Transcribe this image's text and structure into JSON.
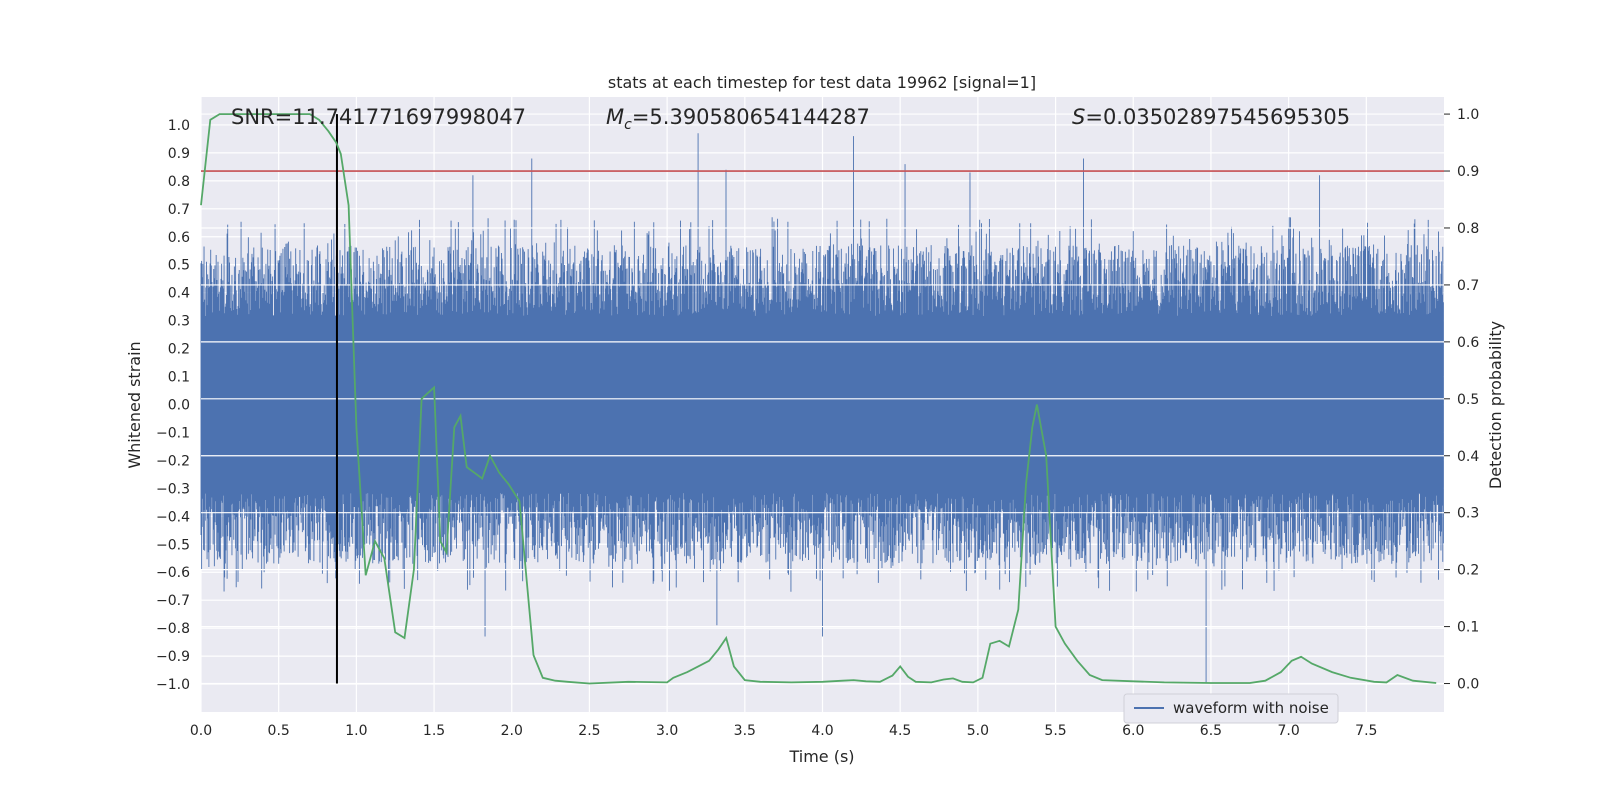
{
  "chart_data": {
    "type": "line",
    "title": "stats at each timestep for test data 19962 [signal=1]",
    "xlabel": "Time (s)",
    "ylabel_left": "Whitened strain",
    "ylabel_right": "Detection probability",
    "xlim": [
      0.0,
      8.0
    ],
    "ylim_left": [
      -1.1,
      1.1
    ],
    "ylim_right": [
      -0.05,
      1.03
    ],
    "x_ticks": [
      "0.0",
      "0.5",
      "1.0",
      "1.5",
      "2.0",
      "2.5",
      "3.0",
      "3.5",
      "4.0",
      "4.5",
      "5.0",
      "5.5",
      "6.0",
      "6.5",
      "7.0",
      "7.5"
    ],
    "y_ticks_left": [
      "1.0",
      "0.9",
      "0.8",
      "0.7",
      "0.6",
      "0.5",
      "0.4",
      "0.3",
      "0.2",
      "0.1",
      "0.0",
      "-0.1",
      "-0.2",
      "-0.3",
      "-0.4",
      "-0.5",
      "-0.6",
      "-0.7",
      "-0.8",
      "-0.9",
      "-1.0"
    ],
    "y_ticks_right": [
      "1.0",
      "0.9",
      "0.8",
      "0.7",
      "0.6",
      "0.5",
      "0.4",
      "0.3",
      "0.2",
      "0.1",
      "0.0"
    ],
    "annotations": {
      "snr": "SNR=11.741771697998047",
      "mc": "=5.390580654144287",
      "mc_symbol": "M",
      "mc_subscript": "c",
      "s": "=0.03502897545695305",
      "s_symbol": "S"
    },
    "legend": {
      "label": "waveform with noise",
      "location": "lower-right"
    },
    "vertical_marker_x": 0.875,
    "threshold_right": 0.9,
    "waveform": {
      "name": "waveform with noise",
      "samples": 2048,
      "typical_envelope": 0.4,
      "spike_range": [
        0.55,
        0.97
      ],
      "peaks": [
        {
          "t": 3.2,
          "v": 0.97
        },
        {
          "t": 4.2,
          "v": 0.96
        },
        {
          "t": 2.13,
          "v": 0.88
        },
        {
          "t": 5.68,
          "v": 0.88
        },
        {
          "t": 4.53,
          "v": 0.86
        },
        {
          "t": 3.38,
          "v": 0.84
        },
        {
          "t": 1.75,
          "v": 0.82
        },
        {
          "t": 7.2,
          "v": 0.82
        },
        {
          "t": 4.95,
          "v": 0.83
        },
        {
          "t": 6.47,
          "v": -1.0
        },
        {
          "t": 3.32,
          "v": -0.79
        },
        {
          "t": 1.83,
          "v": -0.83
        },
        {
          "t": 4.0,
          "v": -0.83
        },
        {
          "t": 0.88,
          "v": -0.77
        }
      ]
    },
    "series": [
      {
        "name": "detection probability",
        "color": "#55a868",
        "x": [
          0.0,
          0.06,
          0.12,
          0.2,
          0.3,
          0.4,
          0.5,
          0.6,
          0.7,
          0.76,
          0.82,
          0.87,
          0.9,
          0.95,
          1.0,
          1.06,
          1.12,
          1.18,
          1.25,
          1.31,
          1.37,
          1.42,
          1.46,
          1.5,
          1.54,
          1.58,
          1.63,
          1.67,
          1.71,
          1.76,
          1.81,
          1.86,
          1.92,
          1.98,
          2.05,
          2.09,
          2.14,
          2.2,
          2.28,
          2.36,
          2.5,
          2.75,
          3.0,
          3.04,
          3.13,
          3.2,
          3.27,
          3.33,
          3.38,
          3.43,
          3.5,
          3.6,
          3.8,
          4.0,
          4.13,
          4.2,
          4.28,
          4.37,
          4.45,
          4.5,
          4.55,
          4.6,
          4.7,
          4.78,
          4.84,
          4.9,
          4.97,
          5.03,
          5.08,
          5.14,
          5.2,
          5.26,
          5.31,
          5.35,
          5.38,
          5.44,
          5.5,
          5.56,
          5.64,
          5.72,
          5.8,
          6.0,
          6.2,
          6.5,
          6.75,
          6.85,
          6.95,
          7.02,
          7.08,
          7.15,
          7.28,
          7.4,
          7.55,
          7.63,
          7.7,
          7.8,
          7.95
        ],
        "values": [
          0.84,
          0.99,
          1.0,
          1.0,
          1.0,
          1.0,
          1.0,
          1.0,
          1.0,
          0.99,
          0.97,
          0.95,
          0.93,
          0.84,
          0.45,
          0.19,
          0.25,
          0.22,
          0.09,
          0.08,
          0.2,
          0.5,
          0.51,
          0.52,
          0.25,
          0.23,
          0.45,
          0.47,
          0.38,
          0.37,
          0.36,
          0.4,
          0.37,
          0.35,
          0.32,
          0.2,
          0.05,
          0.01,
          0.005,
          0.003,
          0.0,
          0.003,
          0.002,
          0.01,
          0.02,
          0.03,
          0.04,
          0.06,
          0.08,
          0.03,
          0.006,
          0.003,
          0.002,
          0.003,
          0.005,
          0.006,
          0.004,
          0.003,
          0.014,
          0.03,
          0.012,
          0.003,
          0.002,
          0.007,
          0.009,
          0.003,
          0.002,
          0.01,
          0.07,
          0.075,
          0.065,
          0.13,
          0.35,
          0.45,
          0.49,
          0.4,
          0.1,
          0.07,
          0.04,
          0.015,
          0.006,
          0.004,
          0.002,
          0.001,
          0.001,
          0.005,
          0.02,
          0.04,
          0.047,
          0.035,
          0.02,
          0.01,
          0.003,
          0.002,
          0.015,
          0.005,
          0.001
        ]
      }
    ]
  }
}
